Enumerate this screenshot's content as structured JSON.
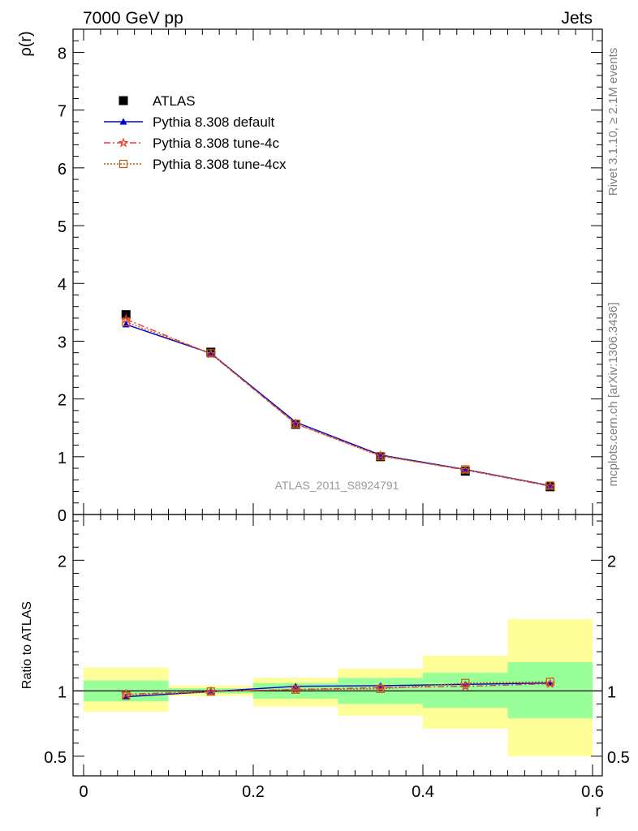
{
  "header": {
    "left": "7000 GeV pp",
    "right": "Jets"
  },
  "side_labels": {
    "rivet": "Rivet 3.1.10, ≥ 2.1M events",
    "mcplots": "mcplots.cern.ch [arXiv:1306.3436]"
  },
  "watermark": "ATLAS_2011_S8924791",
  "legend": {
    "items": [
      {
        "label": "ATLAS",
        "color": "#000000",
        "marker": "square"
      },
      {
        "label": "Pythia 8.308 default",
        "color": "#0000cc",
        "marker": "triangle"
      },
      {
        "label": "Pythia 8.308 tune-4c",
        "color": "#e0403a",
        "marker": "star"
      },
      {
        "label": "Pythia 8.308 tune-4cx",
        "color": "#c85a10",
        "marker": "open-square"
      }
    ]
  },
  "chart_data": [
    {
      "type": "scatter",
      "panel": "main",
      "ylabel": "ρ(r)",
      "xlabel": "",
      "xlim": [
        0,
        0.6
      ],
      "ylim": [
        0,
        8.4
      ],
      "y_ticks": [
        0,
        1,
        2,
        3,
        4,
        5,
        6,
        7,
        8
      ],
      "x": [
        0.05,
        0.15,
        0.25,
        0.35,
        0.45,
        0.55
      ],
      "series": [
        {
          "name": "ATLAS",
          "values": [
            3.46,
            2.81,
            1.56,
            1.0,
            0.75,
            0.48
          ],
          "color": "#000000"
        },
        {
          "name": "Pythia 8.308 default",
          "values": [
            3.29,
            2.79,
            1.6,
            1.03,
            0.78,
            0.5
          ],
          "color": "#0000cc"
        },
        {
          "name": "Pythia 8.308 tune-4c",
          "values": [
            3.38,
            2.78,
            1.57,
            1.02,
            0.77,
            0.49
          ],
          "color": "#e0403a"
        },
        {
          "name": "Pythia 8.308 tune-4cx",
          "values": [
            3.33,
            2.79,
            1.57,
            1.01,
            0.78,
            0.5
          ],
          "color": "#c85a10"
        }
      ]
    },
    {
      "type": "line",
      "panel": "ratio",
      "ylabel": "Ratio to ATLAS",
      "xlabel": "r",
      "xlim": [
        0,
        0.6
      ],
      "ylim": [
        0.35,
        2.35
      ],
      "y_ticks": [
        0.5,
        1,
        2
      ],
      "x_ticks": [
        0,
        0.2,
        0.4,
        0.6
      ],
      "x_tick_labels": [
        "0",
        "0.2",
        "0.4",
        "0.6"
      ],
      "bins": [
        {
          "lo": 0.0,
          "hi": 0.1,
          "band_stat": [
            0.92,
            1.08
          ],
          "band_total": [
            0.84,
            1.18
          ]
        },
        {
          "lo": 0.1,
          "hi": 0.2,
          "band_stat": [
            0.98,
            1.02
          ],
          "band_total": [
            0.96,
            1.04
          ]
        },
        {
          "lo": 0.2,
          "hi": 0.3,
          "band_stat": [
            0.94,
            1.06
          ],
          "band_total": [
            0.88,
            1.1
          ]
        },
        {
          "lo": 0.3,
          "hi": 0.4,
          "band_stat": [
            0.9,
            1.1
          ],
          "band_total": [
            0.81,
            1.17
          ]
        },
        {
          "lo": 0.4,
          "hi": 0.5,
          "band_stat": [
            0.87,
            1.14
          ],
          "band_total": [
            0.71,
            1.27
          ]
        },
        {
          "lo": 0.5,
          "hi": 0.6,
          "band_stat": [
            0.79,
            1.22
          ],
          "band_total": [
            0.5,
            1.55
          ]
        }
      ],
      "x": [
        0.05,
        0.15,
        0.25,
        0.35,
        0.45,
        0.55
      ],
      "series": [
        {
          "name": "Pythia 8.308 default",
          "values": [
            0.955,
            0.995,
            1.035,
            1.04,
            1.05,
            1.06
          ],
          "color": "#0000cc"
        },
        {
          "name": "Pythia 8.308 tune-4c",
          "values": [
            0.975,
            0.995,
            1.01,
            1.025,
            1.035,
            1.055
          ],
          "color": "#e0403a"
        },
        {
          "name": "Pythia 8.308 tune-4cx",
          "values": [
            0.965,
            0.995,
            1.01,
            1.015,
            1.06,
            1.07
          ],
          "color": "#c85a10"
        }
      ]
    }
  ]
}
